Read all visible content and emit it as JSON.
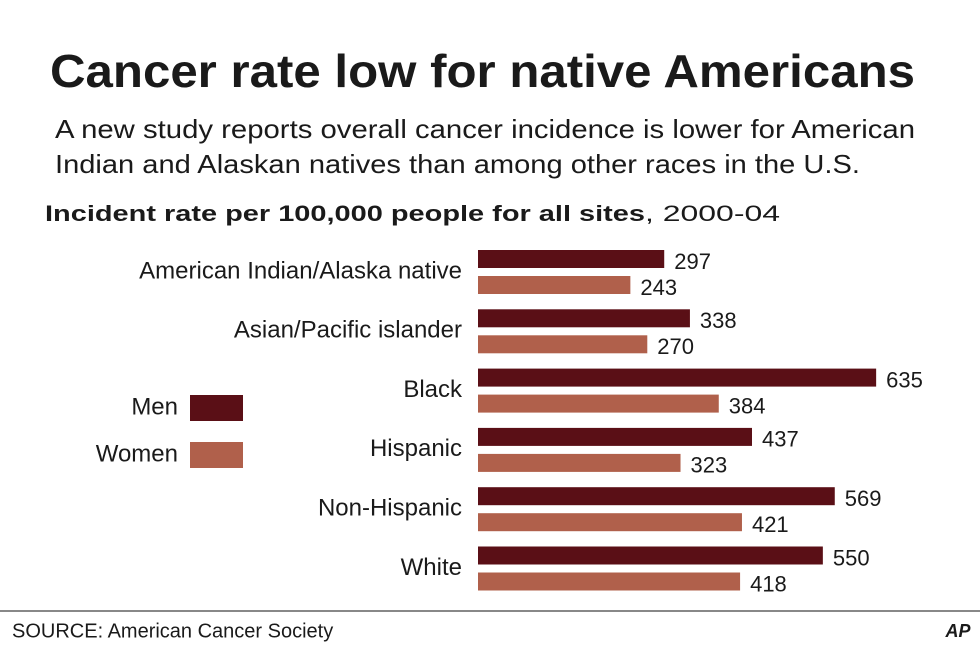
{
  "chart_data": {
    "type": "barh",
    "title": "Cancer rate low for native Americans",
    "subtitle": [
      "A new study reports overall cancer incidence is lower for American",
      "Indian and Alaskan natives than among other races in the U.S."
    ],
    "x_label": "Incident rate per 100,000 people for all sites",
    "x_label_note": ", 2000-04",
    "categories": [
      "American Indian/Alaska native",
      "Asian/Pacific islander",
      "Black",
      "Hispanic",
      "Non-Hispanic",
      "White"
    ],
    "series": [
      {
        "name": "Men",
        "color": "#5a0f16",
        "values": [
          297,
          338,
          635,
          437,
          569,
          550
        ]
      },
      {
        "name": "Women",
        "color": "#b0604b",
        "values": [
          243,
          270,
          384,
          323,
          421,
          418
        ]
      }
    ],
    "source": "SOURCE: American Cancer Society",
    "credit": "AP"
  }
}
